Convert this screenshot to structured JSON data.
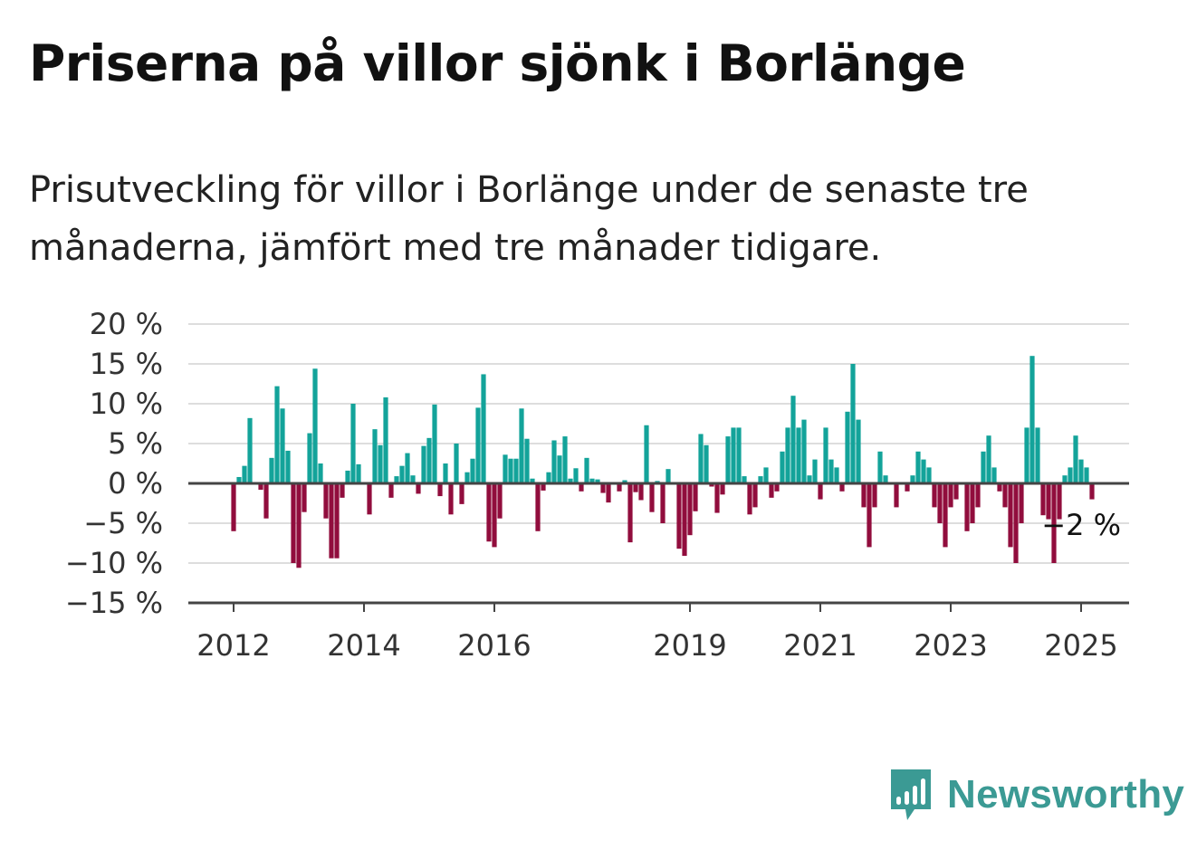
{
  "title": "Priserna på villor sjönk i Borlänge",
  "subtitle": "Prisutveckling för villor i Borlänge under de senaste tre månaderna, jämfört med tre månader tidigare.",
  "brand": {
    "name": "Newsworthy",
    "icon": "newsworthy-logo-icon",
    "color": "#3b9a94"
  },
  "colors": {
    "positive": "#13a39a",
    "negative": "#910d3d",
    "grid": "#dddddd",
    "axis": "#444444"
  },
  "chart_data": {
    "type": "bar",
    "ylim": [
      -15,
      20
    ],
    "yticks": [
      20,
      15,
      10,
      5,
      0,
      -5,
      -10,
      -15
    ],
    "ytick_labels": [
      "20 %",
      "15 %",
      "10 %",
      "5 %",
      "0 %",
      "−5 %",
      "−10 %",
      "−15 %"
    ],
    "x_ticks": [
      {
        "label": "2012",
        "index": 0
      },
      {
        "label": "2014",
        "index": 24
      },
      {
        "label": "2016",
        "index": 48
      },
      {
        "label": "2019",
        "index": 84
      },
      {
        "label": "2021",
        "index": 108
      },
      {
        "label": "2023",
        "index": 132
      },
      {
        "label": "2025",
        "index": 156
      }
    ],
    "x_start": "2012-01",
    "end_label": "−2 %",
    "values": [
      -6.0,
      0.8,
      2.2,
      8.2,
      0,
      -0.8,
      -4.4,
      3.2,
      12.2,
      9.4,
      4.1,
      -10.0,
      -10.6,
      -3.6,
      6.3,
      14.4,
      2.5,
      -4.4,
      -9.4,
      -9.4,
      -1.8,
      1.6,
      10.0,
      2.4,
      0,
      -3.9,
      6.8,
      4.8,
      10.8,
      -1.8,
      0.9,
      2.2,
      3.8,
      1.0,
      -1.3,
      4.7,
      5.7,
      9.9,
      -1.6,
      2.5,
      -3.9,
      5.0,
      -2.6,
      1.4,
      3.1,
      9.5,
      13.7,
      -7.3,
      -8.0,
      -4.4,
      3.6,
      3.1,
      3.1,
      9.4,
      5.6,
      0.6,
      -6.0,
      -0.9,
      1.4,
      5.4,
      3.5,
      5.9,
      0.6,
      1.9,
      -1.0,
      3.2,
      0.6,
      0.5,
      -1.2,
      -2.4,
      0,
      -1.0,
      0.4,
      -7.4,
      -1.1,
      -2.1,
      7.3,
      -3.6,
      0.3,
      -5.0,
      1.8,
      0,
      -8.2,
      -9.1,
      -6.5,
      -3.5,
      6.2,
      4.8,
      -0.4,
      -3.7,
      -1.4,
      5.9,
      7.0,
      7.0,
      0.9,
      -3.9,
      -3.0,
      0.9,
      2.0,
      -1.8,
      -1.0,
      4.0,
      7.0,
      11.0,
      7.0,
      8.0,
      1.0,
      3.0,
      -2.0,
      7.0,
      3.0,
      2.0,
      -1.0,
      9.0,
      15.0,
      8.0,
      -3.0,
      -8.0,
      -3.0,
      4.0,
      1.0,
      0,
      -3.0,
      0,
      -1.0,
      1.0,
      4.0,
      3.0,
      2.0,
      -3.0,
      -5.0,
      -8.0,
      -3.0,
      -2.0,
      0,
      -6.0,
      -5.0,
      -3.0,
      4.0,
      6.0,
      2.0,
      -1.0,
      -3.0,
      -8.0,
      -10.0,
      -5.0,
      7.0,
      16.0,
      7.0,
      -4.0,
      -4.5,
      -10.0,
      -4.5,
      1.0,
      2.0,
      6.0,
      3.0,
      2.0,
      -2.0
    ]
  }
}
